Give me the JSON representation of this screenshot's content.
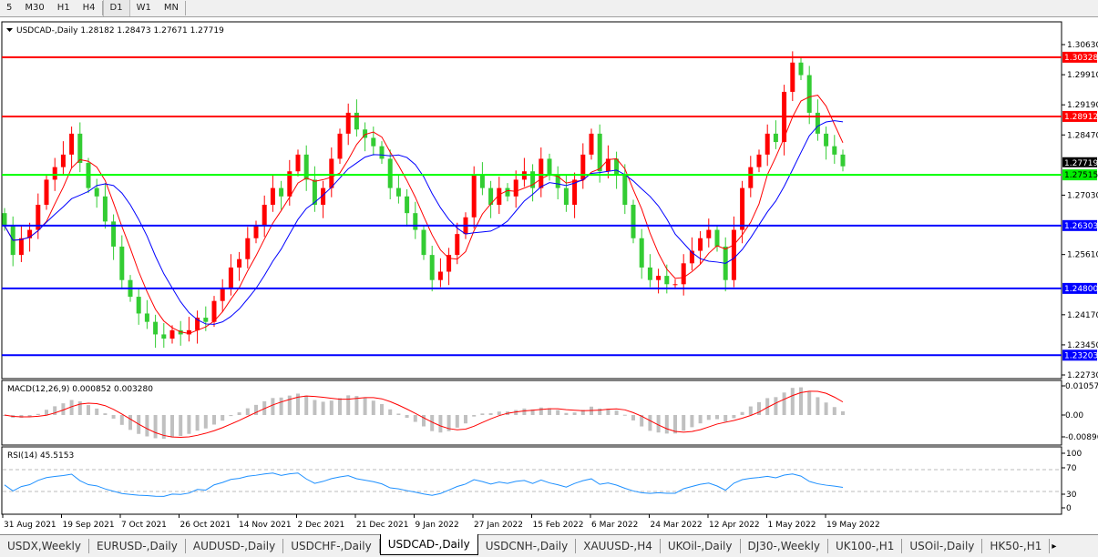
{
  "toolbar": {
    "timeframes": [
      "5",
      "M30",
      "H1",
      "H4",
      "D1",
      "W1",
      "MN"
    ],
    "active": "D1"
  },
  "chart": {
    "header": "USDCAD-,Daily  1.28182 1.28473 1.27671 1.27719",
    "symbol": "USDCAD-,Daily",
    "ohlc": "1.28182 1.28473 1.27671 1.27719",
    "price_ticks": [
      "1.30630",
      "1.29910",
      "1.29190",
      "1.28470",
      "1.27030",
      "1.25610",
      "1.24170",
      "1.23450",
      "1.22730"
    ],
    "current_price": "1.27719",
    "levels": [
      {
        "value": "1.30328",
        "color": "#ff0000"
      },
      {
        "value": "1.28912",
        "color": "#ff0000"
      },
      {
        "value": "1.27515",
        "color": "#00ff00"
      },
      {
        "value": "1.26303",
        "color": "#0000ff"
      },
      {
        "value": "1.24800",
        "color": "#0000ff"
      },
      {
        "value": "1.23203",
        "color": "#0000ff"
      }
    ],
    "bull_color": "#ff0000",
    "bear_color": "#33cc33"
  },
  "macd": {
    "label": "MACD(12,26,9) 0.000852 0.003280",
    "ticks": [
      "0.010578",
      "0.00",
      "-0.00896"
    ]
  },
  "rsi": {
    "label": "RSI(14) 45.5153",
    "ticks": [
      "100",
      "70",
      "30",
      "0"
    ]
  },
  "dates": [
    "31 Aug 2021",
    "19 Sep 2021",
    "7 Oct 2021",
    "26 Oct 2021",
    "14 Nov 2021",
    "2 Dec 2021",
    "21 Dec 2021",
    "9 Jan 2022",
    "27 Jan 2022",
    "15 Feb 2022",
    "6 Mar 2022",
    "24 Mar 2022",
    "12 Apr 2022",
    "1 May 2022",
    "19 May 2022"
  ],
  "chart_data": {
    "type": "candlestick",
    "closes": [
      1.263,
      1.256,
      1.26,
      1.262,
      1.268,
      1.274,
      1.277,
      1.28,
      1.285,
      1.278,
      1.272,
      1.27,
      1.264,
      1.258,
      1.25,
      1.246,
      1.242,
      1.24,
      1.237,
      1.236,
      1.238,
      1.237,
      1.238,
      1.241,
      1.24,
      1.245,
      1.248,
      1.253,
      1.255,
      1.26,
      1.263,
      1.268,
      1.272,
      1.27,
      1.276,
      1.28,
      1.274,
      1.268,
      1.272,
      1.279,
      1.285,
      1.29,
      1.286,
      1.284,
      1.282,
      1.279,
      1.272,
      1.27,
      1.266,
      1.262,
      1.256,
      1.25,
      1.252,
      1.256,
      1.261,
      1.265,
      1.275,
      1.272,
      1.268,
      1.272,
      1.27,
      1.274,
      1.276,
      1.272,
      1.279,
      1.275,
      1.272,
      1.268,
      1.274,
      1.28,
      1.285,
      1.276,
      1.279,
      1.275,
      1.268,
      1.26,
      1.253,
      1.25,
      1.251,
      1.249,
      1.249,
      1.254,
      1.257,
      1.26,
      1.262,
      1.258,
      1.25,
      1.262,
      1.272,
      1.277,
      1.28,
      1.285,
      1.283,
      1.295,
      1.302,
      1.299,
      1.29,
      1.285,
      1.282,
      1.28,
      1.2772
    ],
    "ylim": [
      1.2273,
      1.3063
    ]
  },
  "tabs": [
    "USDX,Weekly",
    "EURUSD-,Daily",
    "AUDUSD-,Daily",
    "USDCHF-,Daily",
    "USDCAD-,Daily",
    "USDCNH-,Daily",
    "XAUUSD-,H4",
    "UKOil-,Daily",
    "DJ30-,Weekly",
    "UK100-,H1",
    "USOil-,Daily",
    "HK50-,H1"
  ],
  "active_tab": "USDCAD-,Daily"
}
